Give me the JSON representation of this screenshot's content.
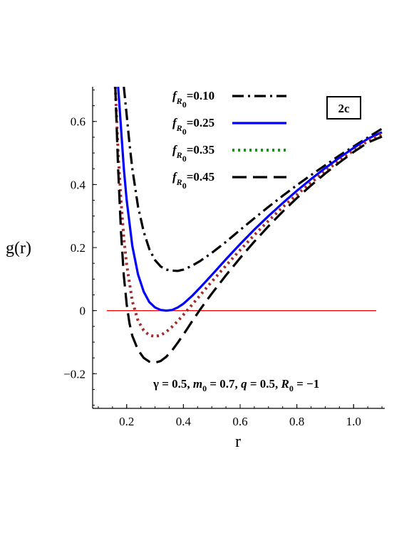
{
  "chart_data": {
    "type": "line",
    "title": "",
    "badge": "2c",
    "xlabel": "r",
    "ylabel": "g(r)",
    "xlim": [
      0.08,
      1.11
    ],
    "ylim": [
      -0.31,
      0.71
    ],
    "xticks": [
      {
        "value": 0.2,
        "label": "0.2"
      },
      {
        "value": 0.4,
        "label": "0.4"
      },
      {
        "value": 0.6,
        "label": "0.6"
      },
      {
        "value": 0.8,
        "label": "0.8"
      },
      {
        "value": 1.0,
        "label": "1.0"
      }
    ],
    "yticks": [
      {
        "value": -0.2,
        "label": "−0.2"
      },
      {
        "value": 0.0,
        "label": "0"
      },
      {
        "value": 0.2,
        "label": "0.2"
      },
      {
        "value": 0.4,
        "label": "0.4"
      },
      {
        "value": 0.6,
        "label": "0.6"
      }
    ],
    "legend_position": "top",
    "annotation": {
      "parts": [
        {
          "text": "γ = 0.5, ",
          "italic": false
        },
        {
          "text": "m",
          "italic": true
        },
        {
          "text": "0",
          "sub": true
        },
        {
          "text": " = 0.7, ",
          "italic": false
        },
        {
          "text": "q",
          "italic": true
        },
        {
          "text": " = 0.5, ",
          "italic": false
        },
        {
          "text": "R",
          "italic": true
        },
        {
          "text": "0",
          "sub": true
        },
        {
          "text": " = −1",
          "italic": false
        }
      ]
    },
    "reference_line": {
      "y": 0,
      "color": "#ff0000"
    },
    "series": [
      {
        "name": "f_R0=0.10",
        "legend": {
          "f": "f",
          "R": "R",
          "sub": "0",
          "value": "=0.10"
        },
        "color": "#000000",
        "dash": "dashdot",
        "x": [
          0.19,
          0.2,
          0.21,
          0.22,
          0.24,
          0.26,
          0.28,
          0.3,
          0.32,
          0.34,
          0.36,
          0.38,
          0.4,
          0.43,
          0.46,
          0.5,
          0.55,
          0.6,
          0.65,
          0.7,
          0.75,
          0.8,
          0.85,
          0.9,
          0.95,
          1.0,
          1.05,
          1.1
        ],
        "y": [
          0.71,
          0.62,
          0.53,
          0.45,
          0.33,
          0.25,
          0.195,
          0.16,
          0.14,
          0.13,
          0.127,
          0.126,
          0.13,
          0.142,
          0.158,
          0.183,
          0.218,
          0.256,
          0.293,
          0.329,
          0.364,
          0.398,
          0.43,
          0.461,
          0.492,
          0.521,
          0.549,
          0.577
        ]
      },
      {
        "name": "f_R0=0.25",
        "legend": {
          "f": "f",
          "R": "R",
          "sub": "0",
          "value": "=0.25"
        },
        "color": "#0000ff",
        "dash": "solid",
        "x": [
          0.17,
          0.18,
          0.19,
          0.2,
          0.22,
          0.24,
          0.26,
          0.28,
          0.3,
          0.32,
          0.34,
          0.36,
          0.38,
          0.4,
          0.43,
          0.46,
          0.5,
          0.55,
          0.6,
          0.65,
          0.7,
          0.75,
          0.8,
          0.85,
          0.9,
          0.95,
          1.0,
          1.05,
          1.1
        ],
        "y": [
          0.71,
          0.58,
          0.45,
          0.35,
          0.205,
          0.115,
          0.06,
          0.027,
          0.01,
          0.002,
          0.0,
          0.002,
          0.01,
          0.022,
          0.046,
          0.074,
          0.113,
          0.163,
          0.211,
          0.257,
          0.3,
          0.341,
          0.38,
          0.417,
          0.452,
          0.485,
          0.516,
          0.545,
          0.566
        ]
      },
      {
        "name": "f_R0=0.35",
        "legend": {
          "f": "f",
          "R": "R",
          "sub": "0",
          "value": "=0.35"
        },
        "color": "#228b22",
        "legend_only": true,
        "dash": "dotted",
        "x": [],
        "y": []
      },
      {
        "name": "f_R0=0.35 (plotted)",
        "legend": null,
        "color": "#a52a2a",
        "dash": "dotted",
        "x": [
          0.16,
          0.17,
          0.18,
          0.19,
          0.2,
          0.22,
          0.24,
          0.26,
          0.28,
          0.3,
          0.32,
          0.34,
          0.36,
          0.38,
          0.4,
          0.43,
          0.46,
          0.5,
          0.55,
          0.6,
          0.65,
          0.7,
          0.75,
          0.8,
          0.85,
          0.9,
          0.95,
          1.0,
          1.05,
          1.1
        ],
        "y": [
          0.71,
          0.5,
          0.35,
          0.23,
          0.145,
          0.03,
          -0.032,
          -0.063,
          -0.078,
          -0.082,
          -0.078,
          -0.067,
          -0.051,
          -0.033,
          -0.013,
          0.018,
          0.05,
          0.092,
          0.143,
          0.192,
          0.24,
          0.285,
          0.328,
          0.368,
          0.406,
          0.442,
          0.476,
          0.508,
          0.538,
          0.561
        ]
      },
      {
        "name": "f_R0=0.45",
        "legend": {
          "f": "f",
          "R": "R",
          "sub": "0",
          "value": "=0.45"
        },
        "color": "#000000",
        "dash": "longdash",
        "x": [
          0.16,
          0.17,
          0.18,
          0.19,
          0.2,
          0.21,
          0.22,
          0.24,
          0.26,
          0.28,
          0.3,
          0.32,
          0.34,
          0.36,
          0.38,
          0.4,
          0.43,
          0.46,
          0.5,
          0.55,
          0.6,
          0.65,
          0.7,
          0.75,
          0.8,
          0.85,
          0.9,
          0.95,
          1.0,
          1.05,
          1.1
        ],
        "y": [
          0.71,
          0.45,
          0.25,
          0.11,
          0.02,
          -0.04,
          -0.08,
          -0.125,
          -0.15,
          -0.162,
          -0.165,
          -0.16,
          -0.146,
          -0.126,
          -0.102,
          -0.076,
          -0.035,
          0.005,
          0.054,
          0.112,
          0.167,
          0.219,
          0.268,
          0.314,
          0.357,
          0.397,
          0.435,
          0.47,
          0.503,
          0.533,
          0.552
        ]
      }
    ]
  }
}
